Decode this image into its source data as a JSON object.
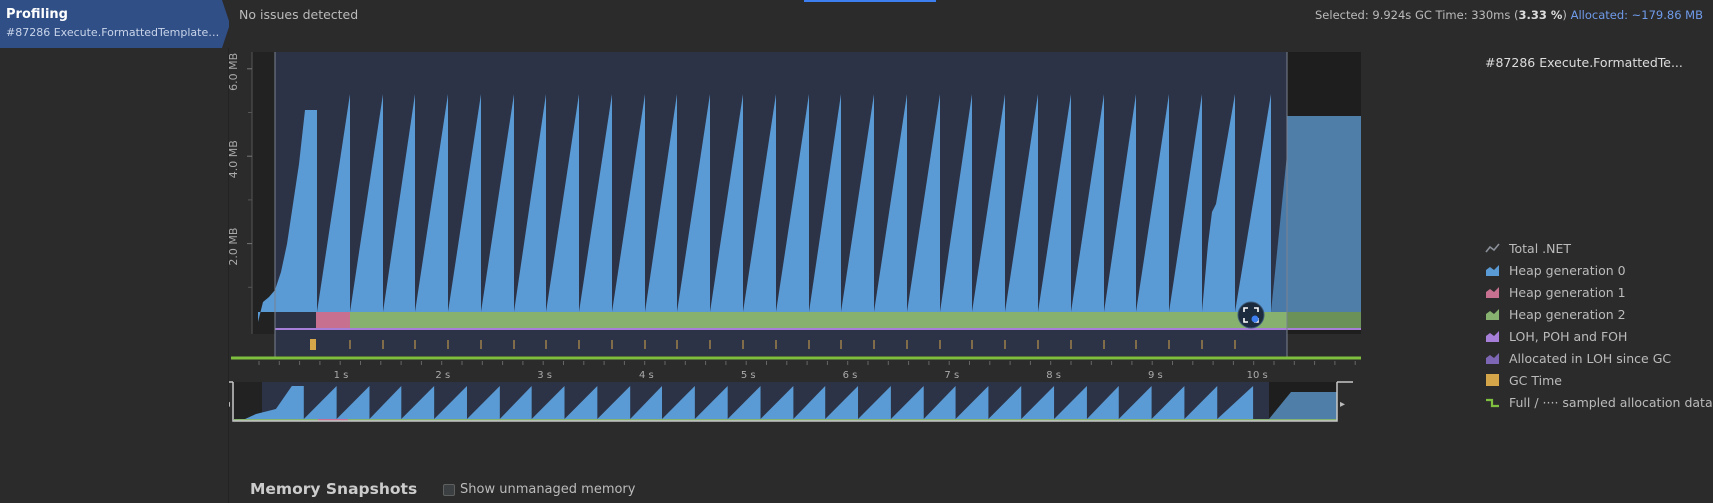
{
  "sidebar": {
    "title": "Profiling",
    "subtitle": "#87286 Execute.FormattedTemplate...."
  },
  "topbar": {
    "status": "No issues detected",
    "stats_prefix": "Selected: 9.924s GC Time: 330ms (",
    "stats_pct": "3.33 %",
    "stats_suffix": ") ",
    "allocated": "Allocated: ~179.86 MB"
  },
  "chart": {
    "y_labels": [
      "6.0 MB",
      "4.0 MB",
      "2.0 MB"
    ],
    "x_labels": [
      "1 s",
      "2 s",
      "3 s",
      "4 s",
      "5 s",
      "6 s",
      "7 s",
      "8 s",
      "9 s",
      "10 s"
    ],
    "ymax_mb": 6.5
  },
  "legend": {
    "title": "#87286 Execute.FormattedTe...",
    "items": [
      {
        "label": "Total .NET",
        "color": "#8a8f98",
        "icon": "line-icon"
      },
      {
        "label": "Heap generation 0",
        "color": "#5b9bd5",
        "icon": "area-icon"
      },
      {
        "label": "Heap generation 1",
        "color": "#c8708f",
        "icon": "area-icon"
      },
      {
        "label": "Heap generation 2",
        "color": "#86b16f",
        "icon": "area-icon"
      },
      {
        "label": "LOH, POH and FOH",
        "color": "#a77fd8",
        "icon": "area-icon"
      },
      {
        "label": "Allocated in LOH since GC",
        "color": "#7d66b3",
        "icon": "area-icon"
      },
      {
        "label": "GC Time",
        "color": "#d5a54a",
        "icon": "square-icon"
      },
      {
        "label": "Full / ···· sampled allocation data",
        "color": "#7fbf3f",
        "icon": "step-icon"
      }
    ]
  },
  "snapshots": {
    "title": "Memory Snapshots",
    "checkbox_label": "Show unmanaged memory"
  },
  "colors": {
    "gen0": "#5b9bd5",
    "gen1": "#c8708f",
    "gen2": "#86b16f",
    "loh": "#a77fd8",
    "gc": "#d5a54a",
    "bg_plot": "#2c3347",
    "accent": "#3d7ef0"
  }
}
